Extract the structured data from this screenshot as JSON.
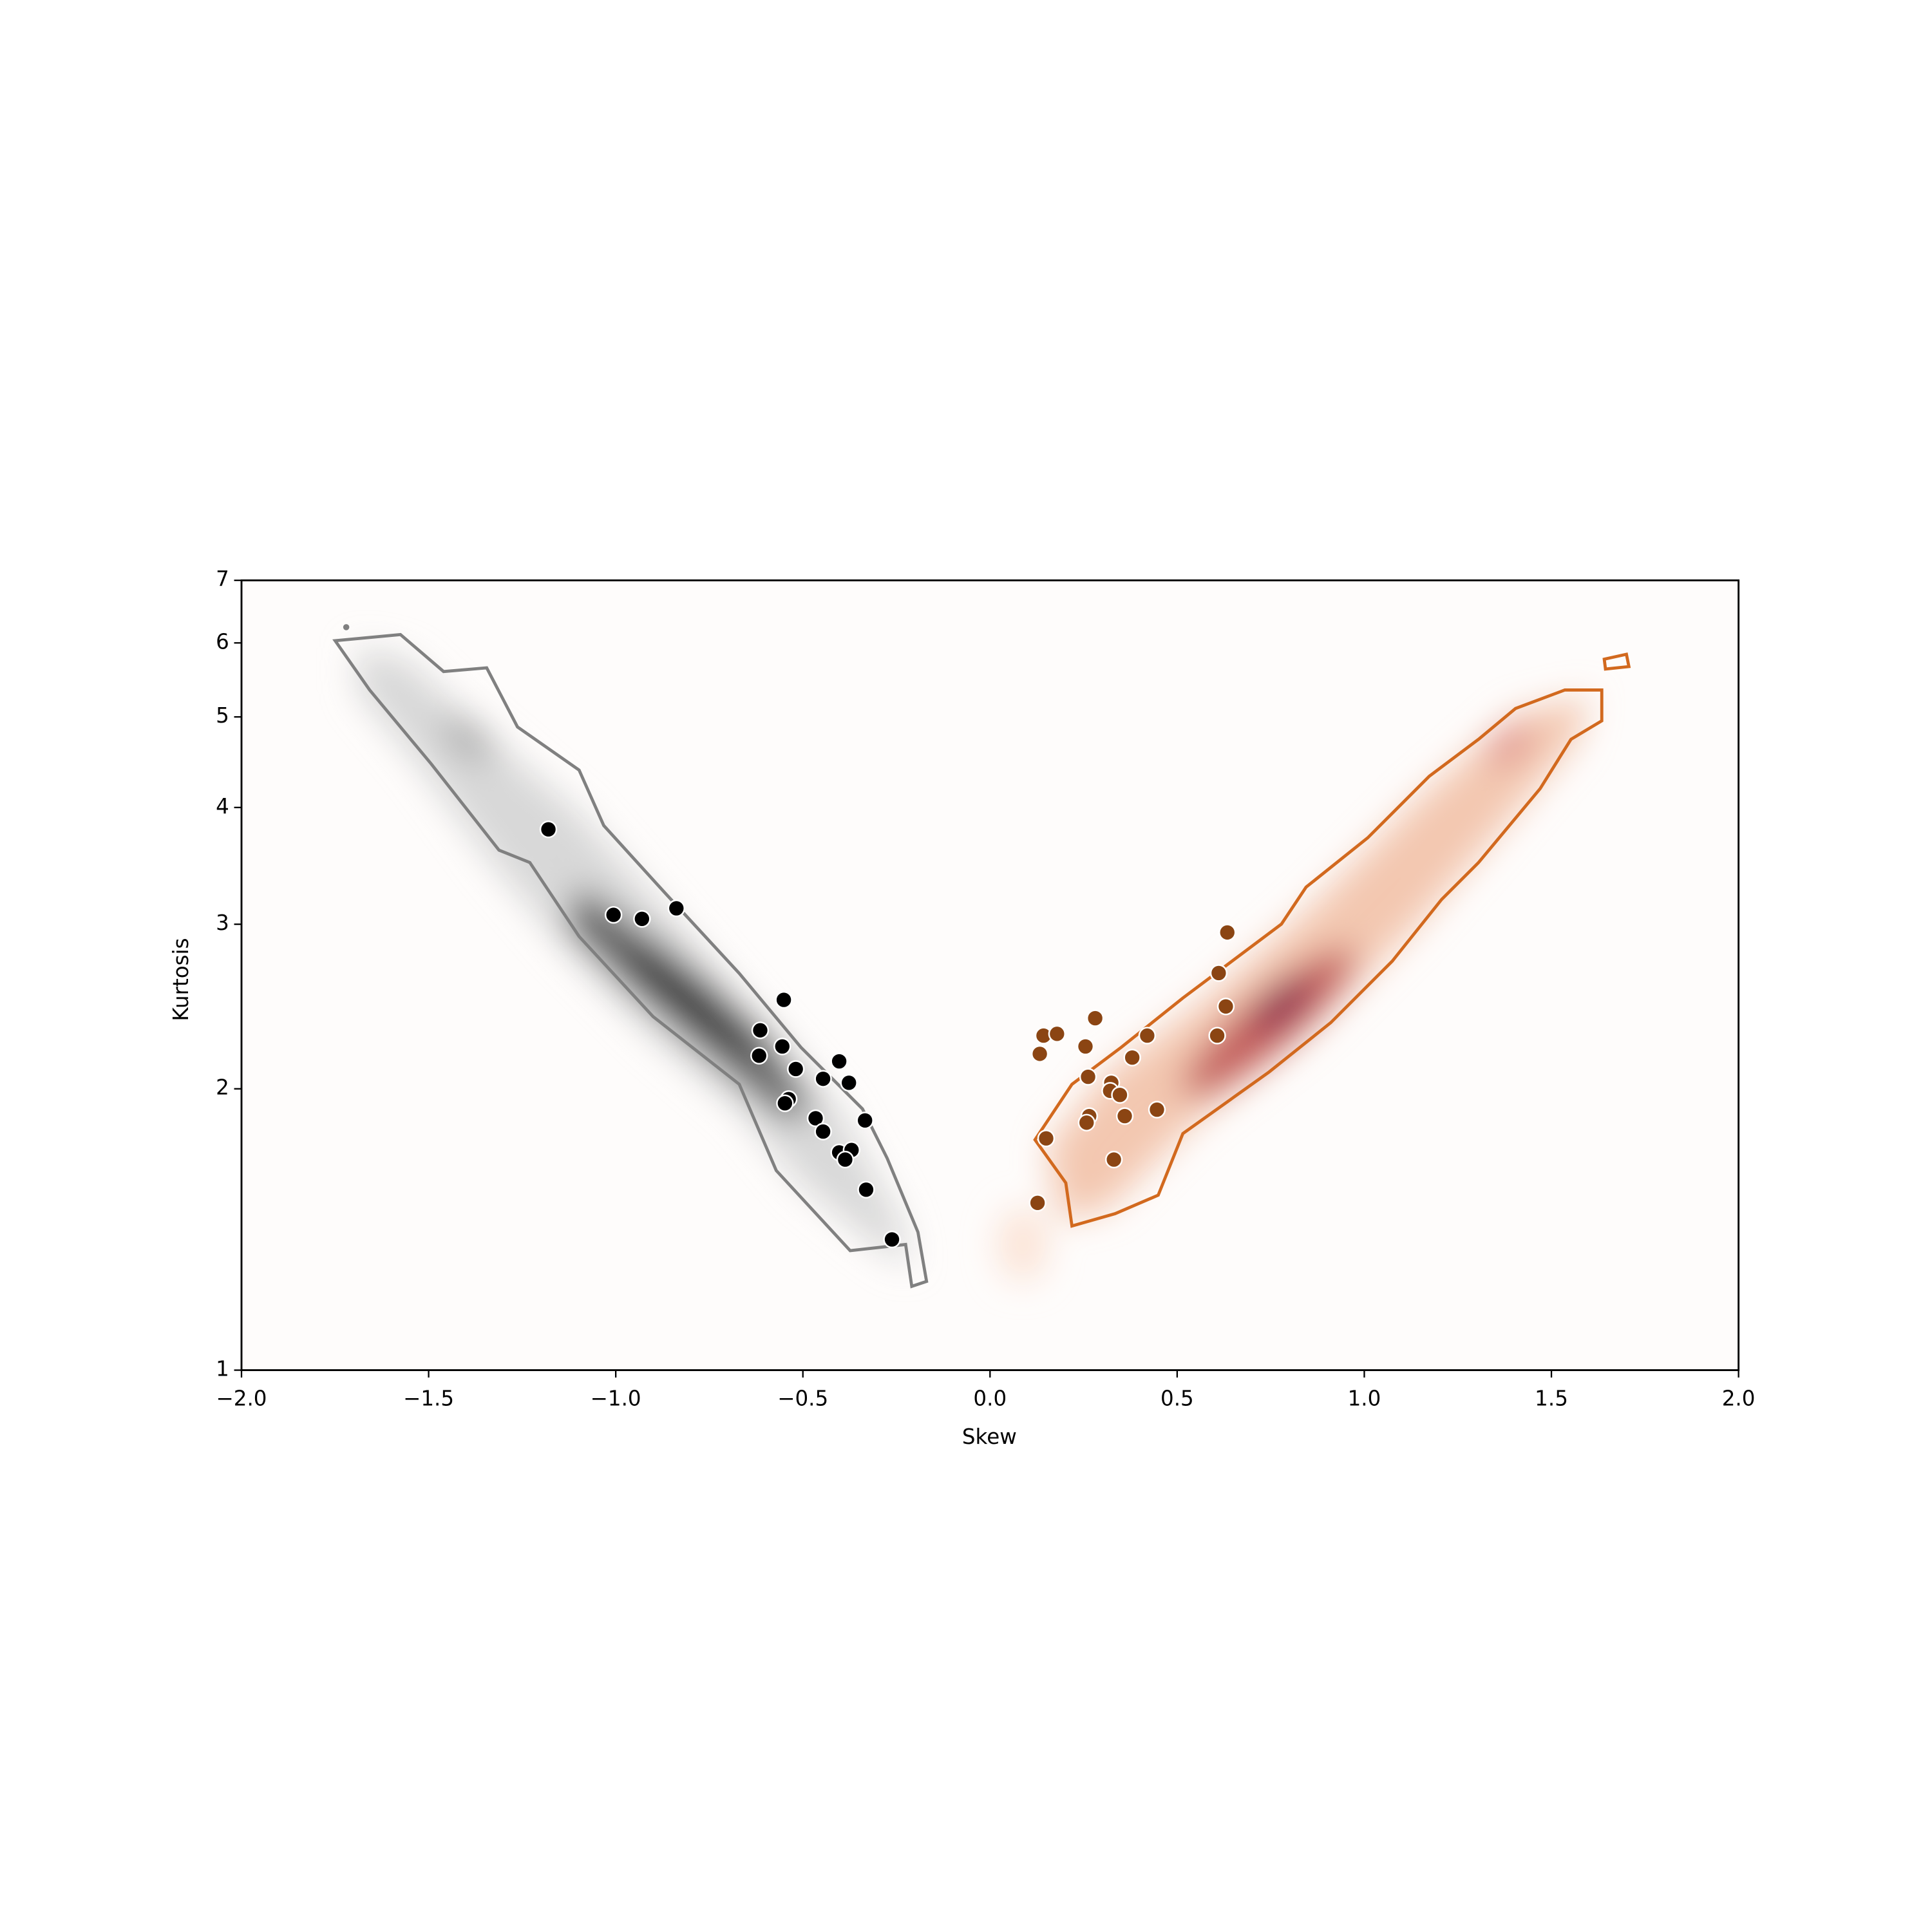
{
  "chart_data": {
    "type": "scatter",
    "xlabel": "Skew",
    "ylabel": "Kurtosis",
    "xlim": [
      -2,
      2
    ],
    "ylim": [
      1,
      7
    ],
    "yscale": "log",
    "xticks": [
      {
        "value": -2,
        "label": "−2.0"
      },
      {
        "value": -1.5,
        "label": "−1.5"
      },
      {
        "value": -1,
        "label": "−1.0"
      },
      {
        "value": -0.5,
        "label": "−0.5"
      },
      {
        "value": 0,
        "label": "0.0"
      },
      0.5,
      {
        "value": 1,
        "label": "1.0"
      },
      1.5,
      {
        "value": 2,
        "label": "2.0"
      }
    ],
    "yticks": [
      1,
      2,
      3,
      4,
      5,
      6,
      7
    ],
    "series": [
      {
        "color": "#000000",
        "x": [
          -1.18,
          -1.006,
          -0.93,
          -0.838,
          -0.551,
          -0.614,
          -0.617,
          -0.555,
          -0.519,
          -0.403,
          -0.446,
          -0.377,
          -0.538,
          -0.548,
          -0.466,
          -0.446,
          -0.334,
          -0.403,
          -0.37,
          -0.387,
          -0.331,
          -0.262
        ],
        "values": [
          3.79,
          3.07,
          3.04,
          3.12,
          2.49,
          2.31,
          2.17,
          2.22,
          2.1,
          2.14,
          2.05,
          2.03,
          1.95,
          1.93,
          1.86,
          1.8,
          1.85,
          1.71,
          1.72,
          1.68,
          1.56,
          1.38
        ]
      },
      {
        "color": "#8b4513",
        "x": [
          0.634,
          0.611,
          0.63,
          0.607,
          0.281,
          0.143,
          0.179,
          0.133,
          0.255,
          0.42,
          0.38,
          0.262,
          0.324,
          0.321,
          0.347,
          0.446,
          0.36,
          0.265,
          0.258,
          0.15,
          0.331,
          0.127
        ],
        "values": [
          2.94,
          2.66,
          2.45,
          2.28,
          2.38,
          2.28,
          2.29,
          2.18,
          2.22,
          2.28,
          2.16,
          2.06,
          2.03,
          1.99,
          1.97,
          1.9,
          1.87,
          1.87,
          1.84,
          1.77,
          1.68,
          1.51
        ]
      }
    ]
  }
}
